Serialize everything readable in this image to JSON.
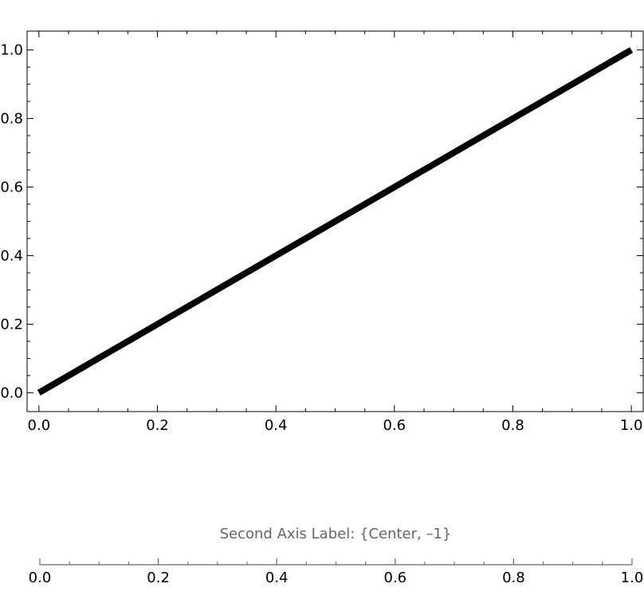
{
  "chart_data": {
    "type": "line",
    "series": [
      {
        "x": [
          0.0,
          1.0
        ],
        "y": [
          0.0,
          1.0
        ],
        "color": "#000000"
      }
    ],
    "xlim": [
      -0.02,
      1.02
    ],
    "ylim": [
      -0.055,
      1.055
    ],
    "x_ticks": [
      "0.0",
      "0.2",
      "0.4",
      "0.6",
      "0.8",
      "1.0"
    ],
    "y_ticks": [
      "0.0",
      "0.2",
      "0.4",
      "0.6",
      "0.8",
      "1.0"
    ],
    "frame": true,
    "grid": false,
    "second_axis": {
      "label": "Second Axis Label: {Center, –1}",
      "ticks": [
        "0.0",
        "0.2",
        "0.4",
        "0.6",
        "0.8",
        "1.0"
      ],
      "color": "#666666"
    }
  }
}
